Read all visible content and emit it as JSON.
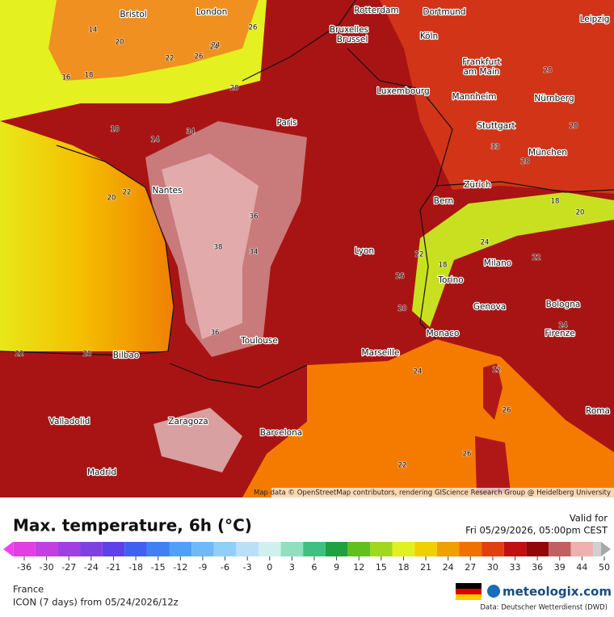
{
  "map": {
    "cities": [
      "Bristol",
      "London",
      "Rotterdam",
      "Dortmund",
      "Bruxelles",
      "Brussel",
      "Köln",
      "Leipzig",
      "Frankfurt",
      "am Main",
      "Luxembourg",
      "Mannheim",
      "Nürnberg",
      "Paris",
      "Stuttgart",
      "München",
      "Nantes",
      "Zürich",
      "Bern",
      "Lyon",
      "Milano",
      "Torino",
      "Genova",
      "Bologna",
      "Monaco",
      "Firenze",
      "Toulouse",
      "Marseille",
      "Bilbao",
      "Valladolid",
      "Zaragoza",
      "Barcelona",
      "Madrid",
      "Roma"
    ],
    "contour_labels": [
      14,
      20,
      24,
      16,
      18,
      14,
      18,
      22,
      20,
      22,
      28,
      24,
      26,
      34,
      36,
      34,
      38,
      36,
      33,
      26,
      22,
      18,
      20,
      24,
      22,
      26,
      28,
      28,
      18,
      20,
      22,
      24,
      22,
      20,
      26,
      28,
      24,
      22,
      26
    ],
    "attribution": "Map data © OpenStreetMap contributors, rendering GIScience Research Group @ Heidelberg University"
  },
  "footer": {
    "title": "Max. temperature, 6h (°C)",
    "valid_label": "Valid for",
    "valid_time": "Fri 05/29/2026, 05:00pm CEST",
    "region": "France",
    "model": "ICON (7 days) from 05/24/2026/12z",
    "brand": "meteologix.com",
    "source": "Data: Deutscher Wetterdienst (DWD)"
  },
  "colorbar": {
    "ticks": [
      -36,
      -30,
      -27,
      -24,
      -21,
      -18,
      -15,
      -12,
      -9,
      -6,
      -3,
      0,
      3,
      6,
      9,
      12,
      15,
      18,
      21,
      24,
      27,
      30,
      33,
      36,
      39,
      44,
      50
    ],
    "colors": [
      "#e040e0",
      "#c040e0",
      "#a040e0",
      "#8040e0",
      "#6040e8",
      "#4060f0",
      "#4080f0",
      "#50a0f8",
      "#70b8f8",
      "#90d0f8",
      "#b8e0f8",
      "#d0f0f0",
      "#90e0c0",
      "#40c080",
      "#20a040",
      "#60c020",
      "#a0d820",
      "#e0f020",
      "#f0d000",
      "#f0a000",
      "#f07000",
      "#e04010",
      "#c01010",
      "#900808",
      "#c06060",
      "#f0b0b0",
      "#d0d0d0"
    ]
  }
}
